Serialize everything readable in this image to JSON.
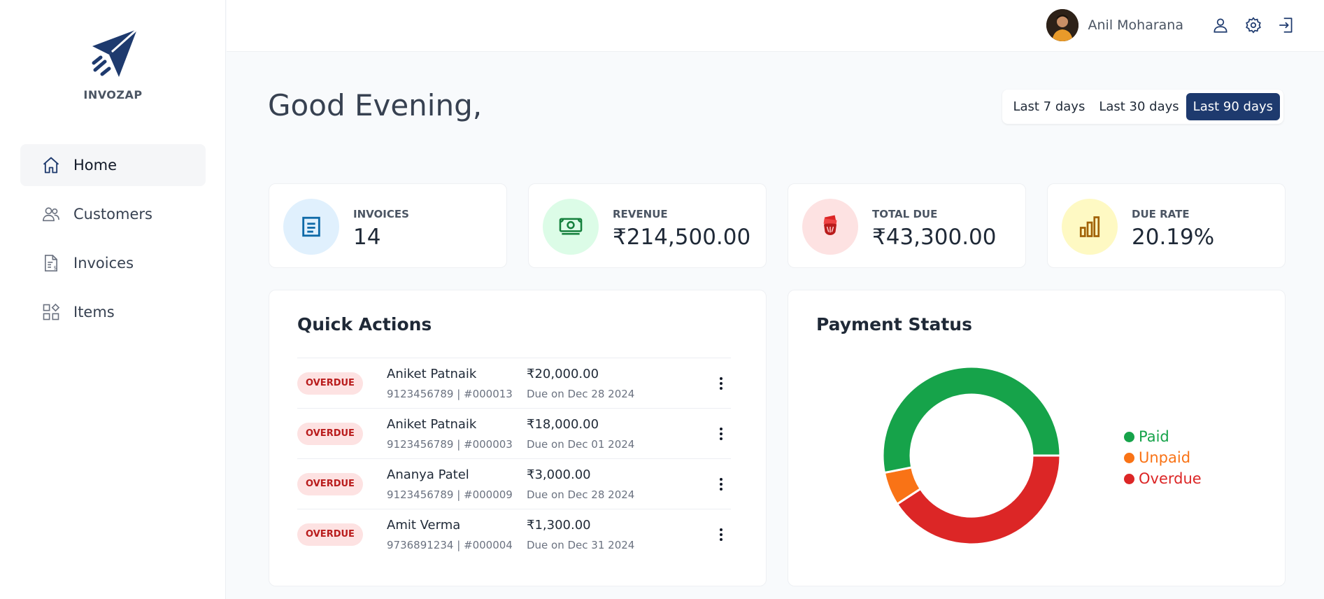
{
  "brand": {
    "name": "INVOZAP"
  },
  "sidebar": {
    "items": [
      {
        "label": "Home",
        "icon": "home-icon",
        "active": true
      },
      {
        "label": "Customers",
        "icon": "users-icon",
        "active": false
      },
      {
        "label": "Invoices",
        "icon": "invoice-icon",
        "active": false
      },
      {
        "label": "Items",
        "icon": "grid-icon",
        "active": false
      }
    ]
  },
  "header": {
    "user_name": "Anil Moharana",
    "icons": [
      "user-icon",
      "gear-icon",
      "logout-icon"
    ]
  },
  "main": {
    "greeting": "Good Evening,",
    "date_ranges": [
      {
        "label": "Last 7 days",
        "active": false
      },
      {
        "label": "Last 30 days",
        "active": false
      },
      {
        "label": "Last 90 days",
        "active": true
      }
    ],
    "stats": [
      {
        "label": "INVOICES",
        "value": "14",
        "icon": "document-icon",
        "color": "#e0f0fd",
        "icon_color": "#0f6aa8"
      },
      {
        "label": "REVENUE",
        "value": "₹214,500.00",
        "icon": "cash-icon",
        "color": "#dcfce7",
        "icon_color": "#15803d"
      },
      {
        "label": "TOTAL DUE",
        "value": "₹43,300.00",
        "icon": "money-hand-icon",
        "color": "#fde2e2",
        "icon_color": "#dc2626"
      },
      {
        "label": "DUE RATE",
        "value": "20.19%",
        "icon": "bar-chart-icon",
        "color": "#fef9c3",
        "icon_color": "#a16207"
      }
    ],
    "quick_actions": {
      "title": "Quick Actions",
      "rows": [
        {
          "status": "OVERDUE",
          "name": "Aniket Patnaik",
          "sub": "9123456789 | #000013",
          "amount": "₹20,000.00",
          "due": "Due on Dec 28 2024"
        },
        {
          "status": "OVERDUE",
          "name": "Aniket Patnaik",
          "sub": "9123456789 | #000003",
          "amount": "₹18,000.00",
          "due": "Due on Dec 01 2024"
        },
        {
          "status": "OVERDUE",
          "name": "Ananya Patel",
          "sub": "9123456789 | #000009",
          "amount": "₹3,000.00",
          "due": "Due on Dec 28 2024"
        },
        {
          "status": "OVERDUE",
          "name": "Amit Verma",
          "sub": "9736891234 | #000004",
          "amount": "₹1,300.00",
          "due": "Due on Dec 31 2024"
        }
      ]
    },
    "payment_status": {
      "title": "Payment Status",
      "chart_data": {
        "type": "pie",
        "donut": true,
        "categories": [
          "Paid",
          "Unpaid",
          "Overdue"
        ],
        "values": [
          53.1,
          6.1,
          40.8
        ],
        "colors": [
          "#16a34a",
          "#f97316",
          "#dc2626"
        ],
        "legend": "right"
      }
    }
  }
}
